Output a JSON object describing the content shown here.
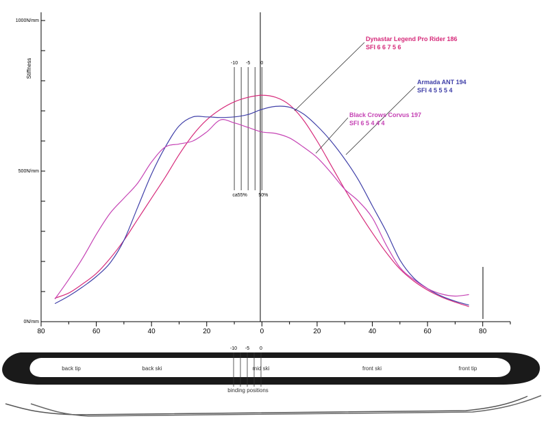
{
  "chart_data": {
    "type": "line",
    "ylabel": "Stiffness",
    "y_ticks": [
      {
        "value": 1000,
        "label": "1000N/mm"
      },
      {
        "value": 500,
        "label": "500N/mm"
      },
      {
        "value": 0,
        "label": "0N/mm"
      }
    ],
    "ylim": [
      0,
      1000
    ],
    "xlim": [
      -80,
      80
    ],
    "x_ticks": [
      {
        "value": -80,
        "label": "80"
      },
      {
        "value": -60,
        "label": "60"
      },
      {
        "value": -40,
        "label": "40"
      },
      {
        "value": -20,
        "label": "20"
      },
      {
        "value": 0,
        "label": "0"
      },
      {
        "value": 20,
        "label": "20"
      },
      {
        "value": 40,
        "label": "40"
      },
      {
        "value": 60,
        "label": "60"
      },
      {
        "value": 80,
        "label": "80"
      }
    ],
    "binding_markers": [
      {
        "x": -10,
        "label": "-10"
      },
      {
        "x": -5,
        "label": "-5"
      },
      {
        "x": 0,
        "label": "0"
      }
    ],
    "binding_lines_x": [
      -10,
      -7.5,
      -5,
      -2.5,
      0
    ],
    "ratio_labels": [
      {
        "x": -8,
        "text": "ca55%"
      },
      {
        "x": 0.5,
        "text": "50%"
      }
    ],
    "series": [
      {
        "name": "Dynastar Legend Pro Rider 186",
        "sfi": "SFI 6 6 7 5 6",
        "color": "#d62a7a",
        "x": [
          -75,
          -70,
          -65,
          -60,
          -55,
          -50,
          -45,
          -40,
          -35,
          -30,
          -25,
          -20,
          -15,
          -10,
          -5,
          0,
          5,
          10,
          15,
          20,
          25,
          30,
          35,
          40,
          45,
          50,
          55,
          60,
          65,
          70,
          75
        ],
        "y": [
          78,
          95,
          125,
          160,
          210,
          270,
          340,
          410,
          480,
          555,
          620,
          670,
          705,
          730,
          745,
          752,
          745,
          720,
          670,
          600,
          520,
          440,
          365,
          295,
          230,
          175,
          135,
          105,
          82,
          65,
          50
        ]
      },
      {
        "name": "Armada ANT 194",
        "sfi": "SFI 4 5 5 5 4",
        "color": "#3f3fa8",
        "x": [
          -75,
          -70,
          -65,
          -60,
          -55,
          -50,
          -45,
          -40,
          -35,
          -30,
          -25,
          -20,
          -15,
          -10,
          -5,
          0,
          5,
          10,
          15,
          20,
          25,
          30,
          35,
          40,
          45,
          50,
          55,
          60,
          65,
          70,
          75
        ],
        "y": [
          60,
          85,
          115,
          150,
          195,
          270,
          380,
          490,
          580,
          650,
          680,
          680,
          678,
          680,
          688,
          705,
          715,
          712,
          690,
          650,
          600,
          540,
          470,
          385,
          300,
          205,
          145,
          110,
          85,
          68,
          55
        ]
      },
      {
        "name": "Black Crows Corvus 197",
        "sfi": "SFI 6 5 4 4 4",
        "color": "#c542b4",
        "x": [
          -75,
          -70,
          -65,
          -60,
          -55,
          -50,
          -45,
          -40,
          -35,
          -30,
          -25,
          -20,
          -15,
          -10,
          -5,
          0,
          5,
          10,
          15,
          20,
          25,
          30,
          35,
          40,
          45,
          50,
          55,
          60,
          65,
          70,
          75
        ],
        "y": [
          75,
          140,
          210,
          290,
          360,
          410,
          460,
          530,
          580,
          590,
          600,
          630,
          670,
          660,
          645,
          630,
          625,
          610,
          580,
          545,
          495,
          440,
          400,
          345,
          255,
          180,
          140,
          110,
          92,
          85,
          90
        ]
      }
    ]
  },
  "ski_diagram": {
    "labels": [
      "back tip",
      "back ski",
      "mid ski",
      "front ski",
      "front tip"
    ],
    "binding_markers": [
      "-10",
      "-5",
      "0"
    ],
    "binding_caption": "binding positions"
  }
}
